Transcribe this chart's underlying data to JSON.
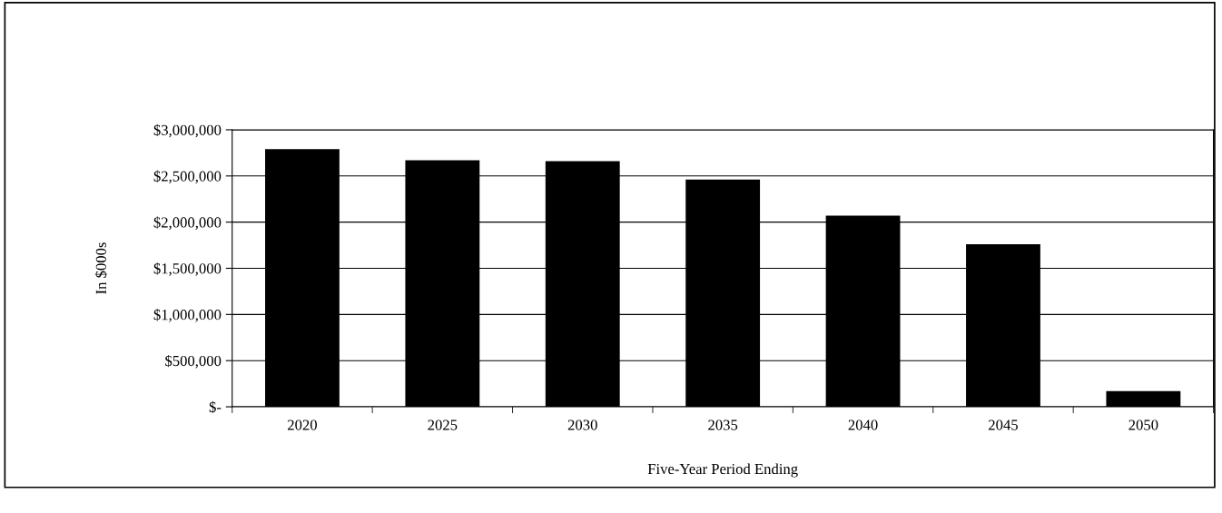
{
  "chart_data": {
    "type": "bar",
    "xlabel": "Five-Year Period Ending",
    "ylabel": "In $000s",
    "categories": [
      "2020",
      "2025",
      "2030",
      "2035",
      "2040",
      "2045",
      "2050"
    ],
    "values": [
      2790000,
      2670000,
      2660000,
      2460000,
      2070000,
      1760000,
      170000
    ],
    "color": "#000000",
    "ylim": [
      0,
      3000000
    ],
    "yticks": [
      {
        "value": 0,
        "label": "$-"
      },
      {
        "value": 500000,
        "label": "$500,000"
      },
      {
        "value": 1000000,
        "label": "$1,000,000"
      },
      {
        "value": 1500000,
        "label": "$1,500,000"
      },
      {
        "value": 2000000,
        "label": "$2,000,000"
      },
      {
        "value": 2500000,
        "label": "$2,500,000"
      },
      {
        "value": 3000000,
        "label": "$3,000,000"
      }
    ],
    "grid": "y"
  }
}
